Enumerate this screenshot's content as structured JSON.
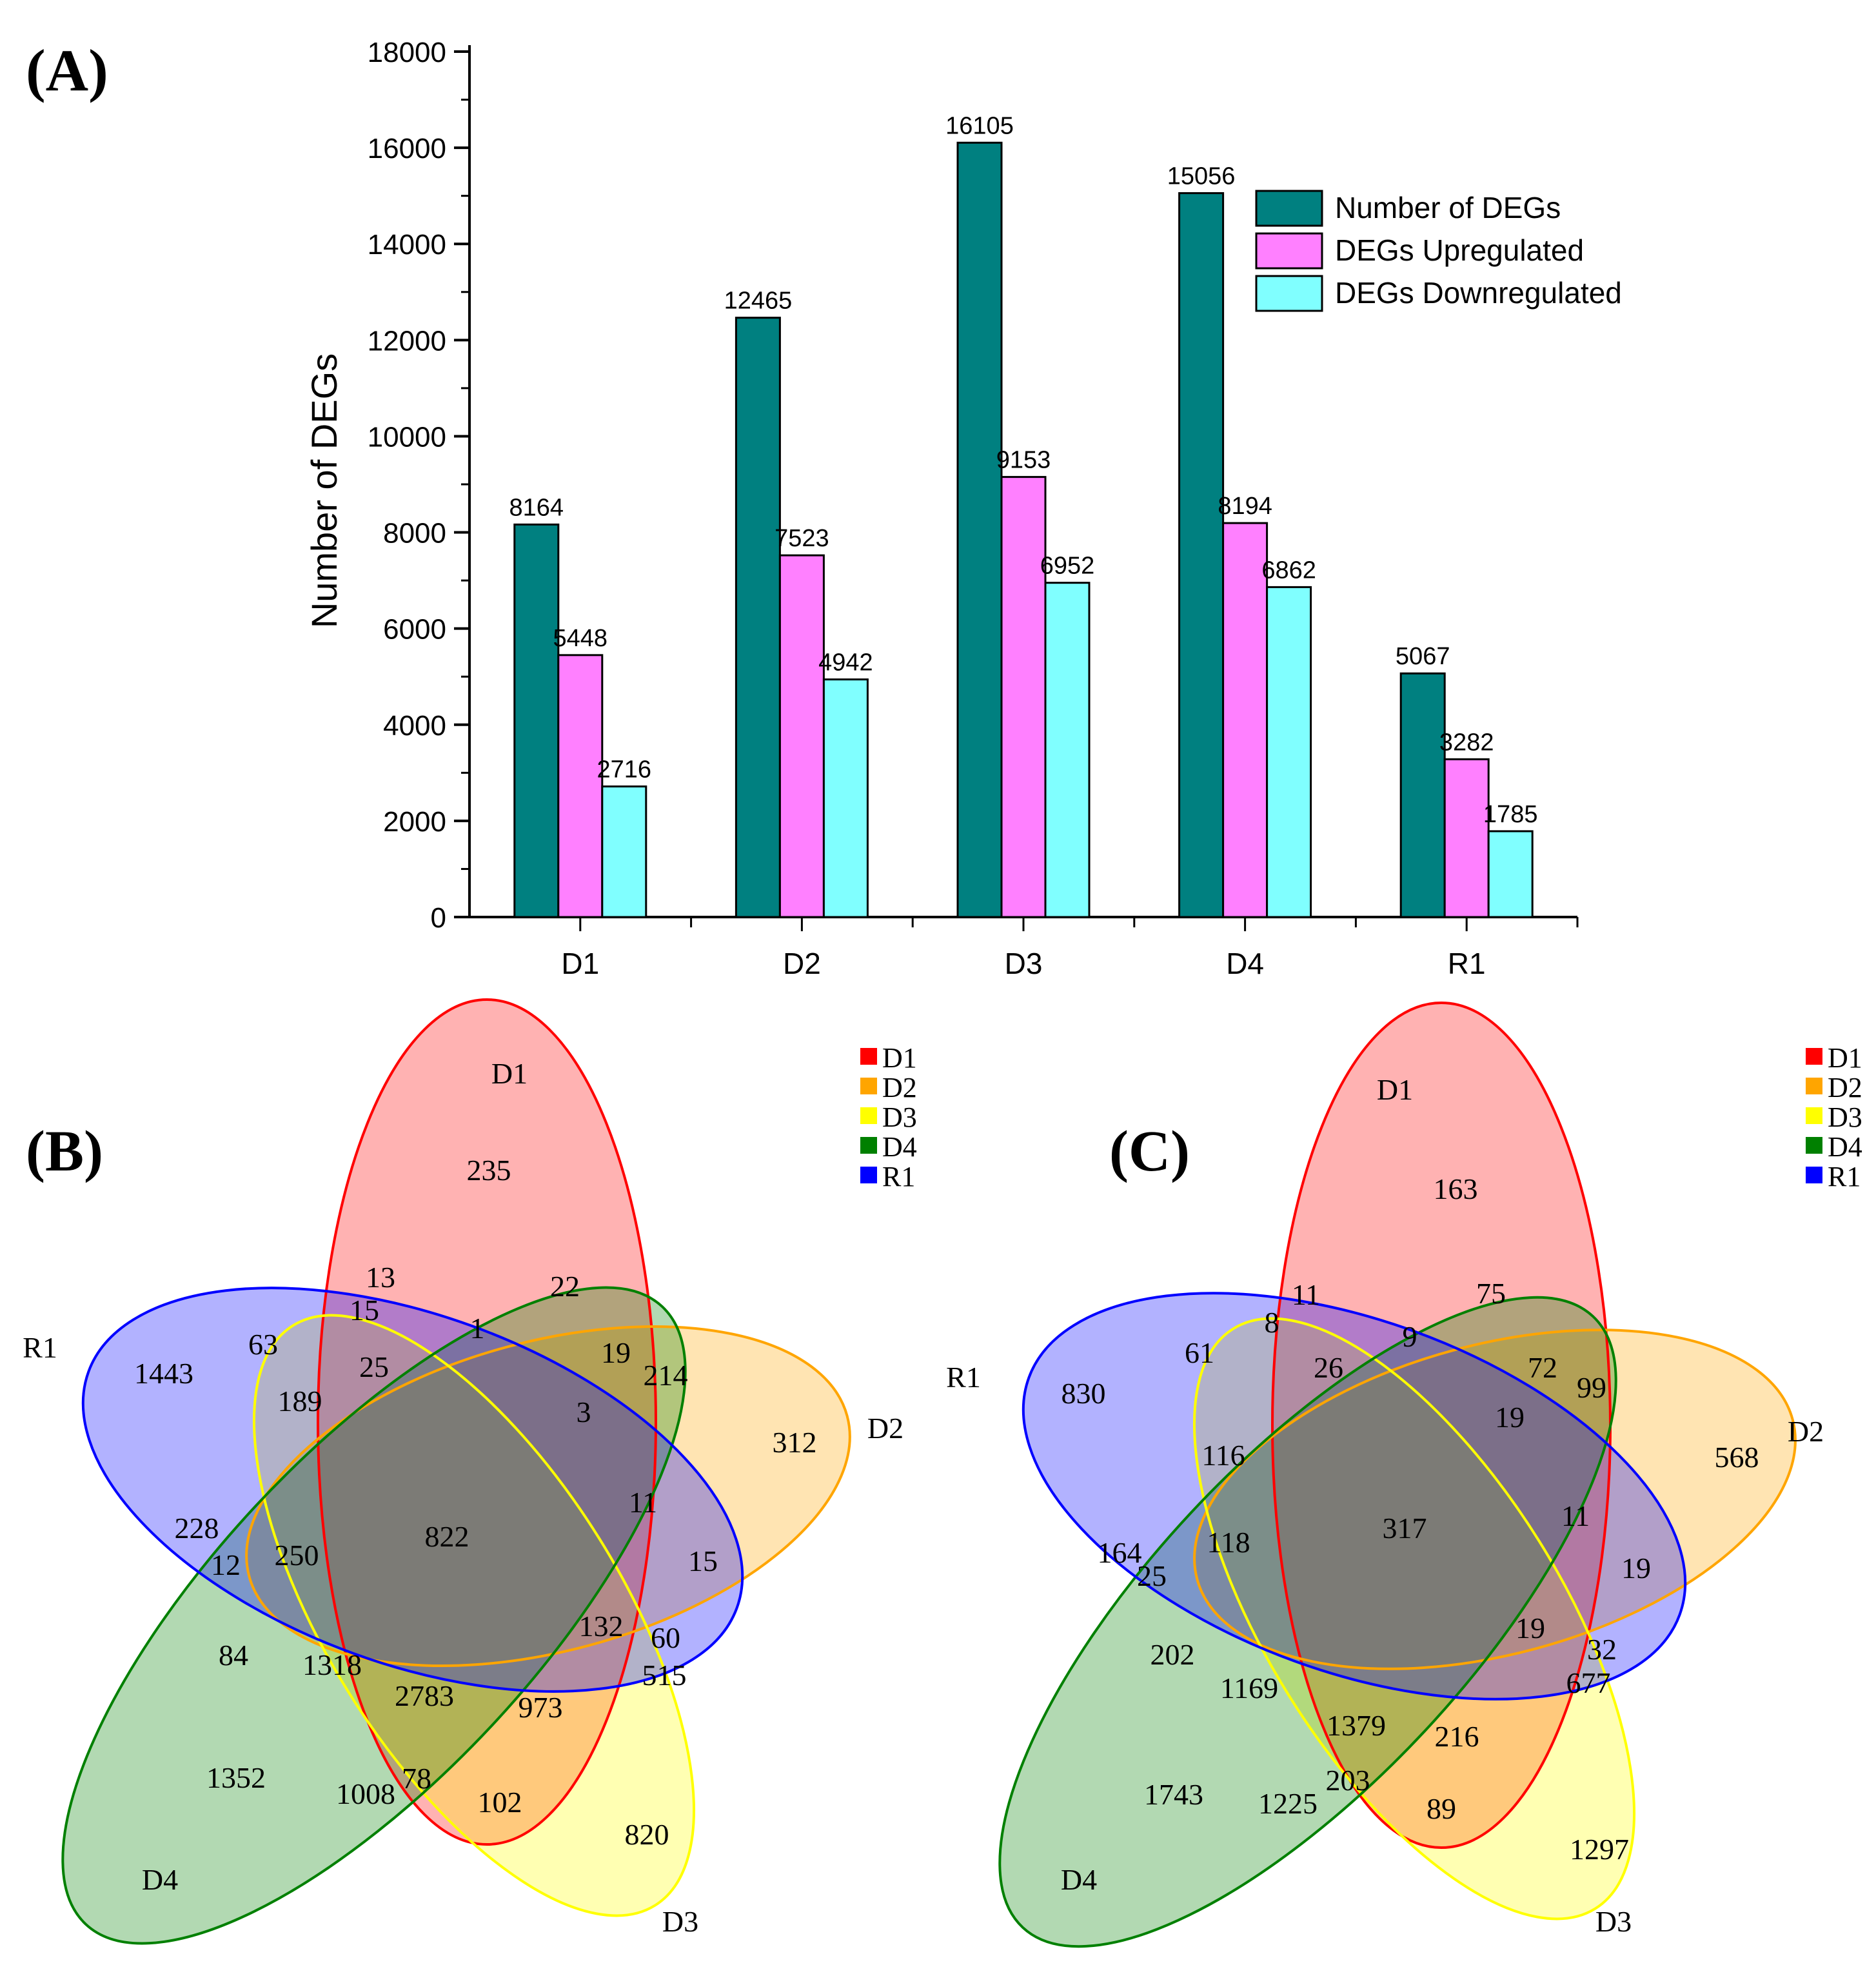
{
  "chart_data": [
    {
      "type": "bar",
      "panel_label": "(A)",
      "title": "",
      "xlabel": "",
      "ylabel": "Number of DEGs",
      "ylim": [
        0,
        18000
      ],
      "yticks": [
        0,
        2000,
        4000,
        6000,
        8000,
        10000,
        12000,
        14000,
        16000,
        18000
      ],
      "tick_labels": [
        "0",
        "2000",
        "4000",
        "6000",
        "8000",
        "10000",
        "12000",
        "14000",
        "16000",
        "18000"
      ],
      "categories": [
        "D1",
        "D2",
        "D3",
        "D4",
        "R1"
      ],
      "legend_position": "top-right",
      "series": [
        {
          "name": "Number of DEGs",
          "color": "#008080",
          "values": [
            8164,
            12465,
            16105,
            15056,
            5067
          ],
          "labels": [
            "8164",
            "12465",
            "16105",
            "15056",
            "5067"
          ]
        },
        {
          "name": "DEGs Upregulated",
          "color": "#ff80ff",
          "values": [
            5448,
            7523,
            9153,
            8194,
            3282
          ],
          "labels": [
            "5448",
            "7523",
            "9153",
            "8194",
            "3282"
          ]
        },
        {
          "name": "DEGs Downregulated",
          "color": "#80ffff",
          "values": [
            2716,
            4942,
            6952,
            6862,
            1785
          ],
          "labels": [
            "2716",
            "4942",
            "6952",
            "6862",
            "1785"
          ]
        }
      ]
    },
    {
      "type": "venn",
      "panel_label": "(B)",
      "sets": [
        {
          "name": "D1",
          "color": "#ff0000"
        },
        {
          "name": "D2",
          "color": "#ffa500"
        },
        {
          "name": "D3",
          "color": "#ffff00"
        },
        {
          "name": "D4",
          "color": "#008000"
        },
        {
          "name": "R1",
          "color": "#0000ff"
        }
      ],
      "legend": [
        "D1",
        "D2",
        "D3",
        "D4",
        "R1"
      ],
      "regions": [
        "235",
        "312",
        "820",
        "1352",
        "1443",
        "13",
        "15",
        "63",
        "25",
        "1",
        "22",
        "19",
        "214",
        "3",
        "189",
        "822",
        "11",
        "15",
        "228",
        "12",
        "250",
        "84",
        "1318",
        "132",
        "60",
        "515",
        "2783",
        "973",
        "1008",
        "78",
        "102"
      ]
    },
    {
      "type": "venn",
      "panel_label": "(C)",
      "sets": [
        {
          "name": "D1",
          "color": "#ff0000"
        },
        {
          "name": "D2",
          "color": "#ffa500"
        },
        {
          "name": "D3",
          "color": "#ffff00"
        },
        {
          "name": "D4",
          "color": "#008000"
        },
        {
          "name": "R1",
          "color": "#0000ff"
        }
      ],
      "legend": [
        "D1",
        "D2",
        "D3",
        "D4",
        "R1"
      ],
      "regions": [
        "163",
        "568",
        "1297",
        "1743",
        "830",
        "11",
        "8",
        "61",
        "26",
        "9",
        "75",
        "72",
        "99",
        "19",
        "116",
        "317",
        "11",
        "19",
        "164",
        "25",
        "118",
        "202",
        "1169",
        "19",
        "32",
        "677",
        "1379",
        "216",
        "1225",
        "203",
        "89"
      ]
    }
  ]
}
